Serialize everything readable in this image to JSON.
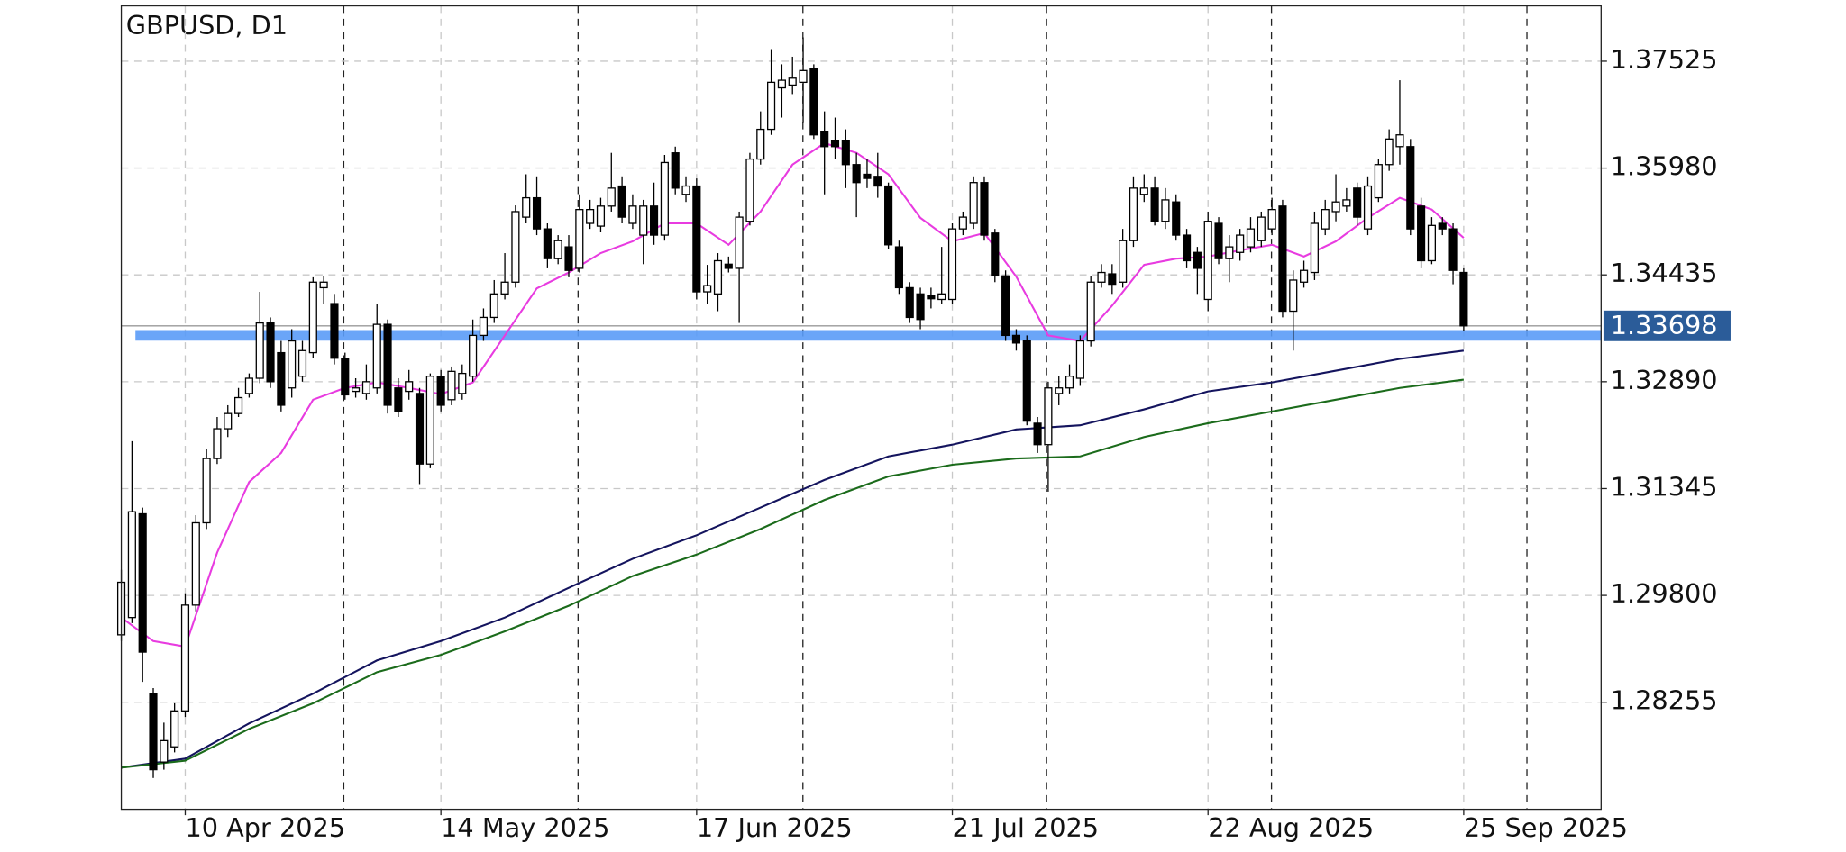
{
  "chart_data": {
    "type": "candlestick",
    "title": "GBPUSD, D1",
    "categories": [
      null,
      null,
      null,
      null,
      null,
      null,
      "10 Apr 2025",
      null,
      null,
      null,
      null,
      null,
      null,
      null,
      null,
      null,
      null,
      null,
      null,
      null,
      null,
      null,
      null,
      null,
      null,
      null,
      null,
      null,
      null,
      null,
      "14 May 2025",
      null,
      null,
      null,
      null,
      null,
      null,
      null,
      null,
      null,
      null,
      null,
      null,
      null,
      null,
      null,
      null,
      null,
      null,
      null,
      null,
      null,
      null,
      null,
      "17 Jun 2025",
      null,
      null,
      null,
      null,
      null,
      null,
      null,
      null,
      null,
      null,
      null,
      null,
      null,
      null,
      null,
      null,
      null,
      null,
      null,
      null,
      null,
      null,
      null,
      "21 Jul 2025",
      null,
      null,
      null,
      null,
      null,
      null,
      null,
      null,
      null,
      null,
      null,
      null,
      null,
      null,
      null,
      null,
      null,
      null,
      null,
      null,
      null,
      null,
      null,
      "22 Aug 2025",
      null,
      null,
      null,
      null,
      null,
      null,
      null,
      null,
      null,
      null,
      null,
      null,
      null,
      null,
      null,
      null,
      null,
      null,
      null,
      null,
      null,
      null,
      null,
      "25 Sep 2025"
    ],
    "open": [
      1.2923,
      1.2948,
      1.3098,
      1.2838,
      1.2739,
      1.2761,
      1.2813,
      1.2966,
      1.3085,
      1.3178,
      1.3221,
      1.3243,
      1.3272,
      1.3294,
      1.3374,
      1.3331,
      1.328,
      1.3297,
      1.3331,
      1.3425,
      1.3402,
      1.3323,
      1.3275,
      1.3272,
      1.328,
      1.3372,
      1.328,
      1.3275,
      1.3272,
      1.317,
      1.3297,
      1.3263,
      1.3272,
      1.3297,
      1.3356,
      1.3382,
      1.3416,
      1.3433,
      1.3527,
      1.3555,
      1.351,
      1.3467,
      1.3484,
      1.3453,
      1.3518,
      1.3514,
      1.3543,
      1.3572,
      1.3518,
      1.3501,
      1.3543,
      1.3501,
      1.362,
      1.356,
      1.3572,
      1.3419,
      1.3416,
      1.3459,
      1.3453,
      1.3521,
      1.3611,
      1.3654,
      1.3714,
      1.3718,
      1.3722,
      1.3742,
      1.3651,
      1.3637,
      1.3637,
      1.3603,
      1.3589,
      1.3586,
      1.3572,
      1.3484,
      1.3425,
      1.3416,
      1.3413,
      1.3408,
      1.3408,
      1.351,
      1.3518,
      1.3577,
      1.3504,
      1.3442,
      1.3356,
      1.3348,
      1.3229,
      1.3198,
      1.3272,
      1.328,
      1.3294,
      1.3348,
      1.3433,
      1.3445,
      1.3433,
      1.3493,
      1.356,
      1.3569,
      1.3521,
      1.3549,
      1.3501,
      1.3476,
      1.3408,
      1.3518,
      1.3467,
      1.3476,
      1.3484,
      1.3493,
      1.351,
      1.3543,
      1.3391,
      1.3433,
      1.3447,
      1.351,
      1.3535,
      1.3543,
      1.3569,
      1.351,
      1.3555,
      1.3603,
      1.3629,
      1.3629,
      1.3543,
      1.3464,
      1.3518,
      1.351,
      1.3447
    ],
    "high": [
      1.3017,
      1.3203,
      1.3107,
      1.2846,
      1.2796,
      1.2824,
      1.2983,
      1.3096,
      1.3192,
      1.3238,
      1.3255,
      1.328,
      1.3301,
      1.3419,
      1.3382,
      1.3348,
      1.3365,
      1.3348,
      1.344,
      1.3442,
      1.3416,
      1.3331,
      1.3294,
      1.3314,
      1.3402,
      1.3379,
      1.3294,
      1.3306,
      1.328,
      1.3301,
      1.3306,
      1.3311,
      1.3314,
      1.3379,
      1.3395,
      1.3436,
      1.3475,
      1.3544,
      1.3589,
      1.3586,
      1.3518,
      1.3501,
      1.3501,
      1.356,
      1.3552,
      1.3555,
      1.362,
      1.3586,
      1.356,
      1.3552,
      1.3577,
      1.3617,
      1.3629,
      1.3586,
      1.3583,
      1.3458,
      1.3475,
      1.347,
      1.3535,
      1.362,
      1.368,
      1.377,
      1.3748,
      1.3759,
      1.3787,
      1.3748,
      1.368,
      1.3671,
      1.3654,
      1.362,
      1.3611,
      1.362,
      1.3577,
      1.3493,
      1.3433,
      1.3425,
      1.3425,
      1.3484,
      1.3518,
      1.3535,
      1.3586,
      1.3586,
      1.351,
      1.345,
      1.3365,
      1.3356,
      1.3238,
      1.3289,
      1.3297,
      1.3314,
      1.3356,
      1.3442,
      1.3459,
      1.3459,
      1.351,
      1.3586,
      1.3589,
      1.3586,
      1.3569,
      1.356,
      1.351,
      1.3484,
      1.3535,
      1.3527,
      1.3501,
      1.351,
      1.3527,
      1.3535,
      1.3555,
      1.3552,
      1.345,
      1.3464,
      1.3535,
      1.3552,
      1.3589,
      1.3569,
      1.3577,
      1.3586,
      1.3611,
      1.3654,
      1.3725,
      1.364,
      1.3555,
      1.3527,
      1.3527,
      1.3518,
      1.3453
    ],
    "low": [
      1.2914,
      1.294,
      1.2855,
      1.2716,
      1.2728,
      1.2753,
      1.2804,
      1.2957,
      1.3076,
      1.317,
      1.3209,
      1.3238,
      1.3266,
      1.3287,
      1.328,
      1.3246,
      1.3266,
      1.3289,
      1.3323,
      1.3402,
      1.3314,
      1.3263,
      1.3266,
      1.3263,
      1.3272,
      1.3243,
      1.3238,
      1.3263,
      1.3141,
      1.3164,
      1.3246,
      1.3255,
      1.3263,
      1.3289,
      1.3348,
      1.3374,
      1.3408,
      1.3425,
      1.3518,
      1.3501,
      1.3453,
      1.3459,
      1.344,
      1.3447,
      1.351,
      1.3505,
      1.3535,
      1.3518,
      1.351,
      1.3459,
      1.3487,
      1.3493,
      1.356,
      1.3549,
      1.3408,
      1.3402,
      1.3391,
      1.3447,
      1.3374,
      1.3515,
      1.3603,
      1.3646,
      1.3671,
      1.3705,
      1.3663,
      1.364,
      1.356,
      1.3611,
      1.3569,
      1.3527,
      1.3569,
      1.3555,
      1.3481,
      1.3416,
      1.3374,
      1.3365,
      1.3395,
      1.3402,
      1.3402,
      1.3501,
      1.351,
      1.3493,
      1.3433,
      1.3348,
      1.3334,
      1.3226,
      1.3186,
      1.313,
      1.3255,
      1.3272,
      1.3283,
      1.334,
      1.3425,
      1.3416,
      1.3425,
      1.3484,
      1.3549,
      1.3515,
      1.351,
      1.3493,
      1.3453,
      1.3416,
      1.3391,
      1.3459,
      1.3433,
      1.3464,
      1.3476,
      1.3484,
      1.3501,
      1.3382,
      1.3334,
      1.3425,
      1.3436,
      1.3501,
      1.3521,
      1.3535,
      1.3515,
      1.3501,
      1.3549,
      1.3594,
      1.3603,
      1.3501,
      1.3453,
      1.3459,
      1.3501,
      1.343,
      1.3362
    ],
    "close": [
      1.2999,
      1.3101,
      1.2898,
      1.2728,
      1.277,
      1.2813,
      1.2966,
      1.3085,
      1.3178,
      1.3221,
      1.3243,
      1.3266,
      1.3294,
      1.3374,
      1.3289,
      1.3255,
      1.3348,
      1.3334,
      1.3433,
      1.3433,
      1.3323,
      1.327,
      1.328,
      1.3289,
      1.3372,
      1.3255,
      1.3246,
      1.3289,
      1.317,
      1.3297,
      1.3255,
      1.3304,
      1.3301,
      1.3356,
      1.3382,
      1.3416,
      1.3433,
      1.3535,
      1.3555,
      1.351,
      1.3467,
      1.3493,
      1.345,
      1.3538,
      1.3538,
      1.3543,
      1.3569,
      1.3527,
      1.3543,
      1.3543,
      1.3501,
      1.3606,
      1.3569,
      1.3572,
      1.3419,
      1.3428,
      1.3464,
      1.3453,
      1.3527,
      1.3611,
      1.3654,
      1.3722,
      1.3725,
      1.3728,
      1.3739,
      1.3646,
      1.3629,
      1.3629,
      1.3603,
      1.3577,
      1.3583,
      1.3572,
      1.3487,
      1.3425,
      1.3382,
      1.3379,
      1.3409,
      1.3416,
      1.351,
      1.3527,
      1.3577,
      1.3501,
      1.3442,
      1.3356,
      1.3345,
      1.3232,
      1.3198,
      1.328,
      1.328,
      1.3297,
      1.3348,
      1.3433,
      1.3447,
      1.343,
      1.3493,
      1.3569,
      1.3569,
      1.3521,
      1.3552,
      1.3501,
      1.3464,
      1.3453,
      1.3521,
      1.3467,
      1.3484,
      1.3501,
      1.351,
      1.3527,
      1.3538,
      1.3391,
      1.3436,
      1.345,
      1.3518,
      1.3538,
      1.3549,
      1.3552,
      1.3527,
      1.3572,
      1.3603,
      1.364,
      1.3646,
      1.351,
      1.3464,
      1.3515,
      1.351,
      1.345,
      1.33698
    ],
    "lines": [
      {
        "color": "#e83be0",
        "x": [
          0,
          3,
          6,
          9,
          12,
          15,
          18,
          21,
          24,
          27,
          30,
          33,
          36,
          39,
          42,
          45,
          48,
          51,
          54,
          57,
          60,
          63,
          66,
          69,
          72,
          75,
          78,
          81,
          84,
          87,
          90,
          93,
          96,
          99,
          102,
          105,
          108,
          111,
          114,
          117,
          120,
          123,
          126
        ],
        "values": [
          1.2948,
          1.2914,
          1.2906,
          1.3042,
          1.3144,
          1.3186,
          1.3263,
          1.328,
          1.3288,
          1.328,
          1.3271,
          1.3288,
          1.3356,
          1.3424,
          1.3447,
          1.3475,
          1.3492,
          1.3518,
          1.3518,
          1.3487,
          1.3535,
          1.3603,
          1.3634,
          1.362,
          1.3589,
          1.3526,
          1.3492,
          1.3504,
          1.3441,
          1.3356,
          1.3348,
          1.3399,
          1.3458,
          1.3467,
          1.347,
          1.3479,
          1.3487,
          1.347,
          1.3492,
          1.3526,
          1.3555,
          1.3538,
          1.3497
        ]
      },
      {
        "color": "#14145e",
        "x": [
          0,
          6,
          12,
          18,
          24,
          30,
          36,
          42,
          48,
          54,
          60,
          66,
          72,
          78,
          84,
          90,
          96,
          102,
          108,
          114,
          120,
          126
        ],
        "values": [
          1.2731,
          1.2744,
          1.2795,
          1.2838,
          1.2886,
          1.2914,
          1.2948,
          1.2991,
          1.3033,
          1.3067,
          1.3107,
          1.3147,
          1.3181,
          1.3198,
          1.322,
          1.3226,
          1.3249,
          1.3275,
          1.3288,
          1.3305,
          1.3322,
          1.3334
        ]
      },
      {
        "color": "#1b6b1b",
        "x": [
          0,
          6,
          12,
          18,
          24,
          30,
          36,
          42,
          48,
          54,
          60,
          66,
          72,
          78,
          84,
          90,
          96,
          102,
          108,
          114,
          120,
          126
        ],
        "values": [
          1.2731,
          1.2741,
          1.2787,
          1.2824,
          1.2869,
          1.2894,
          1.2928,
          1.2965,
          1.3008,
          1.3039,
          1.3076,
          1.3118,
          1.3152,
          1.3169,
          1.3178,
          1.3181,
          1.3209,
          1.3229,
          1.3246,
          1.3263,
          1.328,
          1.3292
        ]
      }
    ],
    "last_price": 1.33698,
    "support_level": 1.3356,
    "ylim": [
      1.26707,
      1.38325
    ],
    "yticks": [
      1.37525,
      {
        "value": 1.3598,
        "label": "1.35980"
      },
      1.34435,
      {
        "value": 1.3289,
        "label": "1.32890"
      },
      1.31345,
      {
        "value": 1.298,
        "label": "1.29800"
      },
      1.28255
    ],
    "grid": true
  }
}
